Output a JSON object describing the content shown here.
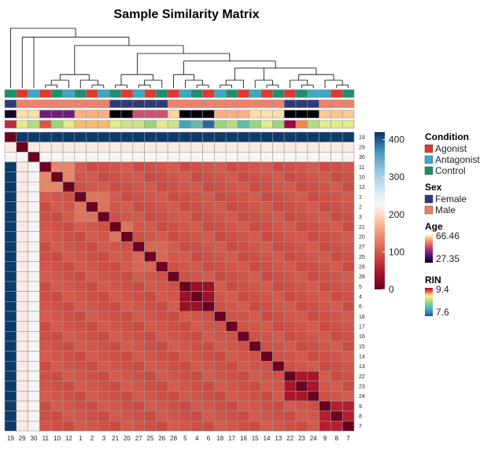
{
  "chart_data": {
    "type": "heatmap",
    "title": "Sample Similarity Matrix",
    "order": [
      19,
      29,
      30,
      11,
      10,
      12,
      1,
      2,
      3,
      21,
      20,
      27,
      25,
      26,
      28,
      5,
      4,
      6,
      18,
      17,
      16,
      15,
      14,
      13,
      22,
      23,
      24,
      9,
      8,
      7
    ],
    "colorbar": {
      "min": 0,
      "max": 420,
      "ticks": [
        0,
        100,
        200,
        300,
        400
      ]
    },
    "annotation_rows": [
      "Condition",
      "Sex",
      "Age",
      "RIN"
    ],
    "legends": [
      {
        "title": "Condition",
        "type": "discrete",
        "items": [
          {
            "label": "Agonist",
            "color": "#e0382f"
          },
          {
            "label": "Antagonist",
            "color": "#3ca7c7"
          },
          {
            "label": "Control",
            "color": "#1c8f6e"
          }
        ]
      },
      {
        "title": "Sex",
        "type": "discrete",
        "items": [
          {
            "label": "Female",
            "color": "#2d3a78"
          },
          {
            "label": "Male",
            "color": "#ef8069"
          }
        ]
      },
      {
        "title": "Age",
        "type": "continuous",
        "max_label": "66.46",
        "min_label": "27.35"
      },
      {
        "title": "RIN",
        "type": "continuous",
        "max_label": "9.4",
        "min_label": "7.6"
      }
    ],
    "samples": {
      "19": {
        "condition": "Control",
        "sex": "Female",
        "age": 30,
        "rin": 9.3
      },
      "29": {
        "condition": "Agonist",
        "sex": "Male",
        "age": 64,
        "rin": 8.8
      },
      "30": {
        "condition": "Antagonist",
        "sex": "Male",
        "age": 64,
        "rin": 8.6
      },
      "11": {
        "condition": "Agonist",
        "sex": "Male",
        "age": 40,
        "rin": 9.2
      },
      "10": {
        "condition": "Control",
        "sex": "Male",
        "age": 40,
        "rin": 8.5
      },
      "12": {
        "condition": "Antagonist",
        "sex": "Male",
        "age": 40,
        "rin": 8.8
      },
      "1": {
        "condition": "Control",
        "sex": "Male",
        "age": 60,
        "rin": 9.0
      },
      "2": {
        "condition": "Agonist",
        "sex": "Male",
        "age": 60,
        "rin": 9.0
      },
      "3": {
        "condition": "Antagonist",
        "sex": "Male",
        "age": 60,
        "rin": 9.0
      },
      "21": {
        "condition": "Control",
        "sex": "Female",
        "age": 28,
        "rin": 8.8
      },
      "20": {
        "condition": "Agonist",
        "sex": "Female",
        "age": 28,
        "rin": 8.7
      },
      "27": {
        "condition": "Antagonist",
        "sex": "Female",
        "age": 50,
        "rin": 8.7
      },
      "25": {
        "condition": "Agonist",
        "sex": "Female",
        "age": 50,
        "rin": 8.5
      },
      "26": {
        "condition": "Control",
        "sex": "Female",
        "age": 50,
        "rin": 8.8
      },
      "28": {
        "condition": "Agonist",
        "sex": "Male",
        "age": 63,
        "rin": 8.7
      },
      "5": {
        "condition": "Antagonist",
        "sex": "Male",
        "age": 28,
        "rin": 8.0
      },
      "4": {
        "condition": "Control",
        "sex": "Male",
        "age": 28,
        "rin": 8.2
      },
      "6": {
        "condition": "Agonist",
        "sex": "Male",
        "age": 28,
        "rin": 7.7
      },
      "18": {
        "condition": "Antagonist",
        "sex": "Male",
        "age": 60,
        "rin": 8.5
      },
      "17": {
        "condition": "Control",
        "sex": "Male",
        "age": 60,
        "rin": 8.6
      },
      "16": {
        "condition": "Agonist",
        "sex": "Male",
        "age": 60,
        "rin": 8.2
      },
      "15": {
        "condition": "Antagonist",
        "sex": "Male",
        "age": 64,
        "rin": 8.5
      },
      "14": {
        "condition": "Agonist",
        "sex": "Male",
        "age": 64,
        "rin": 8.8
      },
      "13": {
        "condition": "Control",
        "sex": "Male",
        "age": 64,
        "rin": 8.5
      },
      "22": {
        "condition": "Agonist",
        "sex": "Female",
        "age": 27.35,
        "rin": 9.4
      },
      "23": {
        "condition": "Control",
        "sex": "Female",
        "age": 27.35,
        "rin": 9.1
      },
      "24": {
        "condition": "Antagonist",
        "sex": "Female",
        "age": 27.35,
        "rin": 8.6
      },
      "9": {
        "condition": "Antagonist",
        "sex": "Male",
        "age": 62,
        "rin": 8.8
      },
      "8": {
        "condition": "Agonist",
        "sex": "Male",
        "age": 62,
        "rin": 8.8
      },
      "7": {
        "condition": "Control",
        "sex": "Male",
        "age": 62,
        "rin": 8.8
      }
    },
    "base_similarity": 95,
    "outlier_row_values": {
      "19": 415,
      "29": 215,
      "30": 225
    },
    "clusters": [
      {
        "members": [
          11,
          10,
          12
        ],
        "within": 135
      },
      {
        "members": [
          1,
          2,
          3
        ],
        "within": 120
      },
      {
        "members": [
          21,
          20
        ],
        "within": 120
      },
      {
        "members": [
          27,
          25,
          26
        ],
        "within": 110
      },
      {
        "members": [
          5,
          4,
          6
        ],
        "within": 35
      },
      {
        "members": [
          18,
          17,
          16
        ],
        "within": 95
      },
      {
        "members": [
          15,
          14,
          13
        ],
        "within": 95
      },
      {
        "members": [
          22,
          23,
          24
        ],
        "within": 45
      },
      {
        "members": [
          9,
          8,
          7
        ],
        "within": 55
      }
    ],
    "dendrogram": [
      [
        "L",
        19
      ],
      [
        [
          "L",
          29
        ],
        [
          "L",
          30
        ],
        [
          [
            [
              [
                [
                  "L",
                  11
                ],
                [
                  "L",
                  10
                ]
              ],
              [
                "L",
                12
              ]
            ],
            [
              [
                "L",
                1
              ],
              [
                [
                  "L",
                  2
                ],
                [
                  "L",
                  3
                ]
              ]
            ]
          ],
          [
            [
              [
                [
                  "L",
                  21
                ],
                [
                  "L",
                  20
                ]
              ],
              [
                [
                  [
                    "L",
                    27
                  ],
                  [
                    "L",
                    25
                  ]
                ],
                [
                  "L",
                  26
                ]
              ]
            ],
            [
              [
                [
                  "L",
                  28
                ],
                [
                  [
                    "L",
                    5
                  ],
                  [
                    [
                      "L",
                      4
                    ],
                    [
                      "L",
                      6
                    ]
                  ]
                ]
              ],
              [
                [
                  [
                    [
                      "L",
                      18
                    ],
                    [
                      "L",
                      17
                    ]
                  ],
                  [
                    "L",
                    16
                  ]
                ],
                [
                  [
                    "L",
                    15
                  ],
                  [
                    [
                      "L",
                      14
                    ],
                    [
                      "L",
                      13
                    ]
                  ]
                ],
                [
                  [
                    [
                      "L",
                      22
                    ],
                    [
                      [
                        "L",
                        23
                      ],
                      [
                        "L",
                        24
                      ]
                    ]
                  ],
                  [
                    [
                      "L",
                      9
                    ],
                    [
                      [
                        "L",
                        8
                      ],
                      [
                        "L",
                        7
                      ]
                    ]
                  ]
                ]
              ]
            ]
          ]
        ]
      ]
    ]
  }
}
